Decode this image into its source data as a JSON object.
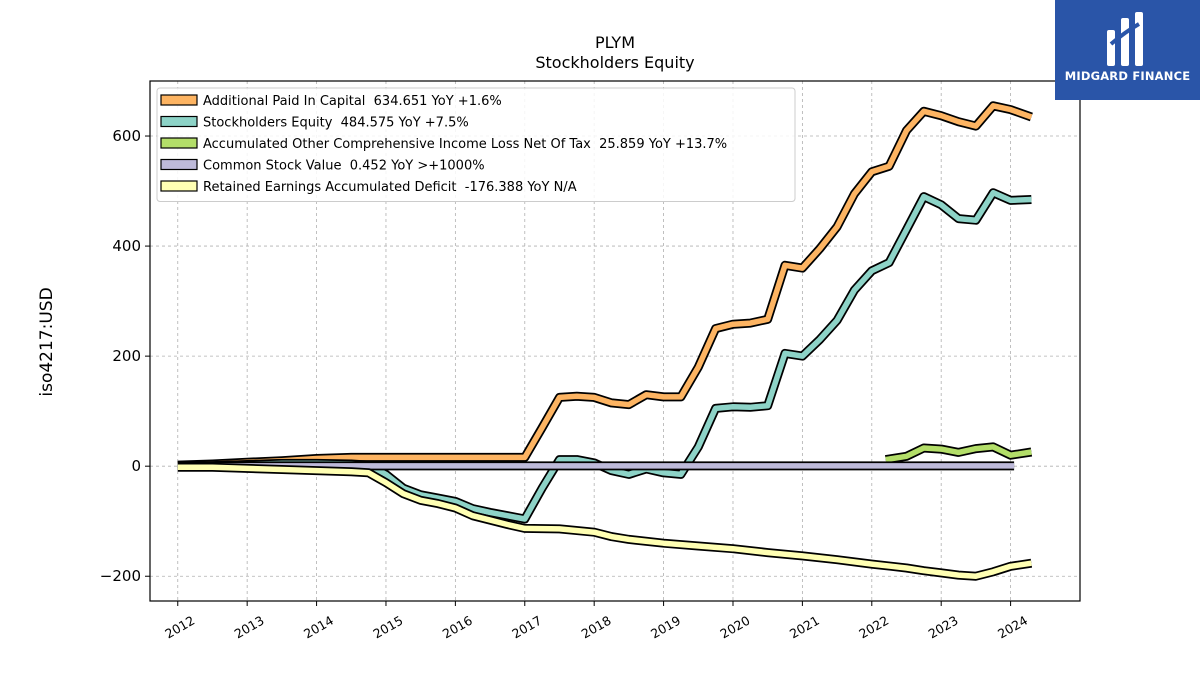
{
  "brand": {
    "name": "MIDGARD FINANCE",
    "bg_color": "#2a55a8"
  },
  "chart_data": {
    "type": "line",
    "title": "PLYM",
    "subtitle": "Stockholders  Equity",
    "ylabel": "iso4217:USD",
    "xlabel": "",
    "xlim": [
      2011.6,
      2025.0
    ],
    "ylim": [
      -245,
      700
    ],
    "yticks": [
      -200,
      0,
      200,
      400,
      600
    ],
    "ytick_labels": [
      "−200",
      "0",
      "200",
      "400",
      "600"
    ],
    "xticks": [
      2012,
      2013,
      2014,
      2015,
      2016,
      2017,
      2018,
      2019,
      2020,
      2021,
      2022,
      2023,
      2024
    ],
    "xtick_labels": [
      "2012",
      "2013",
      "2014",
      "2015",
      "2016",
      "2017",
      "2018",
      "2019",
      "2020",
      "2021",
      "2022",
      "2023",
      "2024"
    ],
    "grid": true,
    "legend_position": "upper-left",
    "series": [
      {
        "name": "Additional Paid In Capital  634.651 YoY +1.6%",
        "color": "#fdb462",
        "x": [
          2012.0,
          2012.5,
          2013.0,
          2013.5,
          2014.0,
          2014.5,
          2015.0,
          2015.5,
          2016.0,
          2016.5,
          2017.0,
          2017.25,
          2017.5,
          2017.75,
          2018.0,
          2018.25,
          2018.5,
          2018.75,
          2019.0,
          2019.25,
          2019.5,
          2019.75,
          2020.0,
          2020.25,
          2020.5,
          2020.75,
          2021.0,
          2021.25,
          2021.5,
          2021.75,
          2022.0,
          2022.25,
          2022.5,
          2022.75,
          2023.0,
          2023.25,
          2023.5,
          2023.75,
          2024.0,
          2024.3
        ],
        "y": [
          2,
          4,
          7,
          10,
          14,
          16,
          16,
          16,
          16,
          16,
          16,
          70,
          125,
          127,
          125,
          115,
          112,
          130,
          126,
          126,
          180,
          250,
          258,
          260,
          267,
          365,
          360,
          395,
          435,
          495,
          535,
          545,
          610,
          645,
          637,
          626,
          618,
          655,
          648,
          634.651
        ]
      },
      {
        "name": "Stockholders Equity  484.575 YoY +7.5%",
        "color": "#8dd3c7",
        "x": [
          2012.0,
          2012.5,
          2013.0,
          2013.5,
          2014.0,
          2014.5,
          2014.75,
          2015.0,
          2015.25,
          2015.5,
          2015.75,
          2016.0,
          2016.25,
          2016.5,
          2016.75,
          2017.0,
          2017.25,
          2017.5,
          2017.75,
          2018.0,
          2018.25,
          2018.5,
          2018.75,
          2019.0,
          2019.25,
          2019.5,
          2019.75,
          2020.0,
          2020.25,
          2020.5,
          2020.75,
          2021.0,
          2021.25,
          2021.5,
          2021.75,
          2022.0,
          2022.25,
          2022.5,
          2022.75,
          2023.0,
          2023.25,
          2023.5,
          2023.75,
          2024.0,
          2024.3
        ],
        "y": [
          0,
          1,
          3,
          5,
          5,
          4,
          2,
          -15,
          -40,
          -52,
          -58,
          -64,
          -77,
          -84,
          -90,
          -96,
          -40,
          12,
          12,
          6,
          -8,
          -15,
          -5,
          -12,
          -15,
          35,
          105,
          108,
          107,
          110,
          205,
          200,
          230,
          265,
          320,
          355,
          370,
          430,
          490,
          475,
          450,
          447,
          497,
          483,
          484.575
        ]
      },
      {
        "name": "Accumulated Other Comprehensive Income Loss Net Of Tax  25.859 YoY +13.7%",
        "color": "#b3de69",
        "x": [
          2022.2,
          2022.5,
          2022.75,
          2023.0,
          2023.25,
          2023.5,
          2023.75,
          2024.0,
          2024.3
        ],
        "y": [
          12,
          18,
          33,
          31,
          25,
          32,
          35,
          20,
          25.859
        ]
      },
      {
        "name": "Common Stock Value  0.452 YoY >+1000%",
        "color": "#bebada",
        "x": [
          2012.0,
          2024.05
        ],
        "y": [
          0.452,
          0.452
        ]
      },
      {
        "name": "Retained Earnings Accumulated Deficit  -176.388 YoY N/A",
        "color": "#ffffb3",
        "x": [
          2012.0,
          2012.5,
          2013.0,
          2013.5,
          2014.0,
          2014.5,
          2014.75,
          2015.0,
          2015.25,
          2015.5,
          2015.75,
          2016.0,
          2016.25,
          2016.5,
          2016.75,
          2017.0,
          2017.5,
          2018.0,
          2018.25,
          2018.5,
          2019.0,
          2019.5,
          2020.0,
          2020.5,
          2021.0,
          2021.5,
          2022.0,
          2022.5,
          2022.75,
          2023.0,
          2023.25,
          2023.5,
          2023.75,
          2024.0,
          2024.3
        ],
        "y": [
          -2,
          -2,
          -4,
          -6,
          -8,
          -10,
          -12,
          -30,
          -50,
          -62,
          -68,
          -76,
          -90,
          -98,
          -106,
          -113,
          -114,
          -120,
          -128,
          -133,
          -140,
          -145,
          -150,
          -157,
          -163,
          -170,
          -178,
          -185,
          -190,
          -194,
          -198,
          -200,
          -192,
          -182,
          -176.388
        ]
      }
    ]
  }
}
